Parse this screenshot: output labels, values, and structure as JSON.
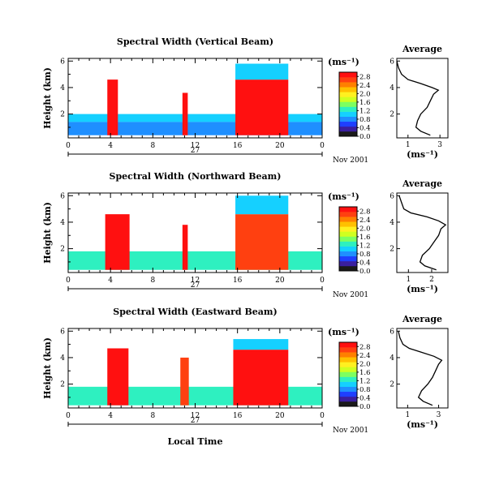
{
  "figure": {
    "xlabel": "Local Time",
    "date_label": "27",
    "month_label": "Nov 2001"
  },
  "colors": {
    "scale": [
      "#1a1a1a",
      "#3a1fa0",
      "#1f3fff",
      "#1f8fff",
      "#15d0ff",
      "#2ef0c0",
      "#7dff60",
      "#d0ff20",
      "#fff020",
      "#ffc000",
      "#ff8000",
      "#ff4010",
      "#ff1010"
    ]
  },
  "chart_data": [
    {
      "type": "heatmap",
      "title": "Spectral Width (Vertical Beam)",
      "ylabel": "Height (km)",
      "unit_label": "(ms⁻¹)",
      "x_ticks": [
        "0",
        "4",
        "8",
        "12",
        "16",
        "20",
        "0"
      ],
      "y_ticks": [
        "2",
        "4",
        "6"
      ],
      "xlim": [
        0,
        24
      ],
      "ylim": [
        0.2,
        6.2
      ],
      "colorbar_ticks": [
        "0.0",
        "0.4",
        "0.8",
        "1.2",
        "1.6",
        "2.0",
        "2.4",
        "2.8"
      ],
      "colorbar_range": [
        0.0,
        3.0
      ],
      "regions": [
        {
          "x": [
            0.0,
            24.0
          ],
          "y": [
            1.4,
            2.0
          ],
          "value": 1.0
        },
        {
          "x": [
            0.0,
            24.0
          ],
          "y": [
            0.4,
            1.4
          ],
          "value": 0.8
        },
        {
          "x": [
            3.7,
            4.7
          ],
          "y": [
            0.4,
            4.6
          ],
          "value": 2.9
        },
        {
          "x": [
            10.8,
            11.3
          ],
          "y": [
            0.4,
            3.6
          ],
          "value": 2.8
        },
        {
          "x": [
            15.8,
            20.8
          ],
          "y": [
            0.4,
            4.6
          ],
          "value": 2.9
        },
        {
          "x": [
            15.8,
            20.8
          ],
          "y": [
            4.6,
            5.8
          ],
          "value": 1.1
        }
      ],
      "average": {
        "title": "Average",
        "xlabel": "(ms⁻¹)",
        "x_ticks": [
          "1",
          "3"
        ],
        "y_ticks": [
          "2",
          "4",
          "6"
        ],
        "xlim": [
          0.3,
          3.5
        ],
        "ylim": [
          0.2,
          6.2
        ],
        "heights": [
          0.4,
          0.7,
          1.0,
          1.5,
          2.0,
          2.5,
          3.0,
          3.5,
          3.8,
          4.0,
          4.3,
          4.6,
          5.0,
          5.5,
          6.0
        ],
        "values": [
          2.4,
          1.8,
          1.5,
          1.6,
          1.8,
          2.2,
          2.4,
          2.6,
          2.9,
          2.5,
          1.8,
          1.0,
          0.6,
          0.4,
          0.3
        ]
      }
    },
    {
      "type": "heatmap",
      "title": "Spectral Width (Northward Beam)",
      "ylabel": "Height (km)",
      "unit_label": "(ms⁻¹)",
      "x_ticks": [
        "0",
        "4",
        "8",
        "12",
        "16",
        "20",
        "0"
      ],
      "y_ticks": [
        "2",
        "4",
        "6"
      ],
      "xlim": [
        0,
        24
      ],
      "ylim": [
        0.2,
        6.2
      ],
      "colorbar_ticks": [
        "0.0",
        "0.4",
        "0.8",
        "1.2",
        "1.6",
        "2.0",
        "2.4",
        "2.8"
      ],
      "colorbar_range": [
        0.0,
        3.0
      ],
      "regions": [
        {
          "x": [
            0.0,
            24.0
          ],
          "y": [
            0.4,
            1.8
          ],
          "value": 1.2
        },
        {
          "x": [
            3.5,
            5.8
          ],
          "y": [
            0.4,
            4.6
          ],
          "value": 2.8
        },
        {
          "x": [
            10.8,
            11.3
          ],
          "y": [
            0.4,
            3.8
          ],
          "value": 2.8
        },
        {
          "x": [
            15.8,
            20.8
          ],
          "y": [
            0.4,
            4.6
          ],
          "value": 2.7
        },
        {
          "x": [
            15.8,
            20.8
          ],
          "y": [
            4.6,
            6.0
          ],
          "value": 1.0
        }
      ],
      "average": {
        "title": "Average",
        "xlabel": "(ms⁻¹)",
        "x_ticks": [
          "1",
          "2"
        ],
        "y_ticks": [
          "2",
          "4",
          "6"
        ],
        "xlim": [
          0.5,
          2.7
        ],
        "ylim": [
          0.2,
          6.2
        ],
        "heights": [
          0.4,
          0.7,
          1.0,
          1.5,
          2.0,
          2.5,
          3.0,
          3.5,
          3.8,
          4.1,
          4.4,
          4.7,
          5.0,
          5.5,
          6.0
        ],
        "values": [
          2.2,
          1.7,
          1.5,
          1.6,
          1.9,
          2.1,
          2.3,
          2.4,
          2.6,
          2.3,
          1.8,
          1.1,
          0.8,
          0.7,
          0.6
        ]
      }
    },
    {
      "type": "heatmap",
      "title": "Spectral Width (Eastward Beam)",
      "ylabel": "Height (km)",
      "unit_label": "(ms⁻¹)",
      "x_ticks": [
        "0",
        "4",
        "8",
        "12",
        "16",
        "20",
        "0"
      ],
      "y_ticks": [
        "2",
        "4",
        "6"
      ],
      "xlim": [
        0,
        24
      ],
      "ylim": [
        0.2,
        6.2
      ],
      "colorbar_ticks": [
        "0.0",
        "0.4",
        "0.8",
        "1.2",
        "1.6",
        "2.0",
        "2.4",
        "2.8"
      ],
      "colorbar_range": [
        0.0,
        3.0
      ],
      "regions": [
        {
          "x": [
            0.0,
            24.0
          ],
          "y": [
            0.4,
            1.8
          ],
          "value": 1.3
        },
        {
          "x": [
            3.7,
            5.7
          ],
          "y": [
            0.4,
            4.7
          ],
          "value": 2.8
        },
        {
          "x": [
            10.6,
            11.4
          ],
          "y": [
            0.4,
            4.0
          ],
          "value": 2.6
        },
        {
          "x": [
            15.6,
            20.8
          ],
          "y": [
            0.4,
            4.6
          ],
          "value": 2.8
        },
        {
          "x": [
            15.6,
            20.8
          ],
          "y": [
            4.6,
            5.4
          ],
          "value": 1.0
        }
      ],
      "average": {
        "title": "Average",
        "xlabel": "(ms⁻¹)",
        "x_ticks": [
          "1",
          "3"
        ],
        "y_ticks": [
          "2",
          "4",
          "6"
        ],
        "xlim": [
          0.3,
          3.6
        ],
        "ylim": [
          0.2,
          6.2
        ],
        "heights": [
          0.4,
          0.7,
          1.0,
          1.5,
          2.0,
          2.5,
          3.0,
          3.5,
          3.8,
          4.1,
          4.4,
          4.7,
          5.0,
          5.5,
          6.0
        ],
        "values": [
          2.6,
          2.0,
          1.7,
          1.9,
          2.3,
          2.6,
          2.8,
          3.0,
          3.2,
          2.7,
          1.9,
          1.1,
          0.7,
          0.5,
          0.4
        ]
      }
    }
  ]
}
